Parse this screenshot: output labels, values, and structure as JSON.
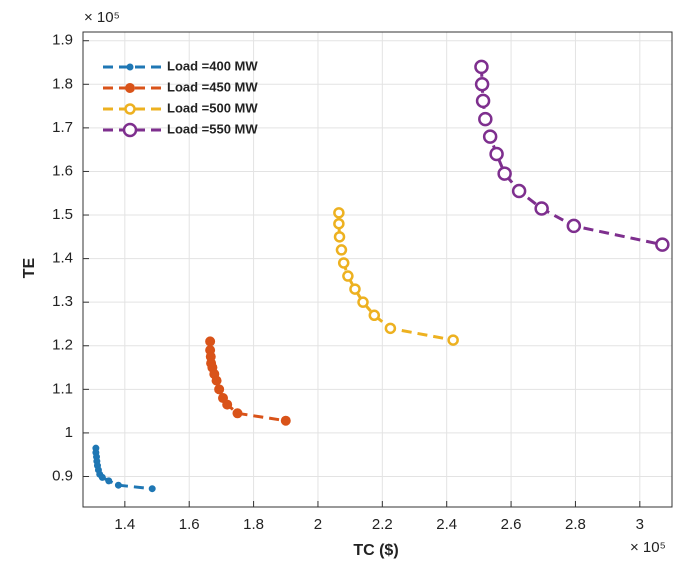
{
  "chart_data": {
    "type": "line",
    "x_label": "TC ($)",
    "y_label": "TE",
    "x_multiplier": "× 10⁵",
    "y_multiplier": "× 10⁵",
    "xlim": [
      1.27,
      3.1
    ],
    "ylim": [
      0.83,
      1.92
    ],
    "xticks": [
      1.4,
      1.6,
      1.8,
      2,
      2.2,
      2.4,
      2.6,
      2.8,
      3
    ],
    "yticks": [
      0.9,
      1,
      1.1,
      1.2,
      1.3,
      1.4,
      1.5,
      1.6,
      1.7,
      1.8,
      1.9
    ],
    "grid": true,
    "legend": "upper-left",
    "series": [
      {
        "name": "Load =400 MW",
        "color": "#1f77b4",
        "marker_size": 3,
        "marker_fill": true,
        "x": [
          1.31,
          1.31,
          1.312,
          1.313,
          1.315,
          1.318,
          1.322,
          1.33,
          1.35,
          1.38,
          1.485
        ],
        "values": [
          0.965,
          0.955,
          0.945,
          0.935,
          0.925,
          0.915,
          0.905,
          0.898,
          0.89,
          0.88,
          0.872
        ]
      },
      {
        "name": "Load =450 MW",
        "color": "#d95319",
        "marker_size": 4.5,
        "marker_fill": true,
        "x": [
          1.665,
          1.665,
          1.667,
          1.668,
          1.672,
          1.678,
          1.685,
          1.693,
          1.705,
          1.718,
          1.75,
          1.9
        ],
        "values": [
          1.21,
          1.19,
          1.175,
          1.16,
          1.15,
          1.135,
          1.12,
          1.1,
          1.08,
          1.065,
          1.045,
          1.028
        ]
      },
      {
        "name": "Load =500 MW",
        "color": "#edb120",
        "marker_size": 4.5,
        "marker_fill": false,
        "x": [
          2.065,
          2.065,
          2.067,
          2.073,
          2.08,
          2.093,
          2.115,
          2.14,
          2.175,
          2.225,
          2.42
        ],
        "values": [
          1.505,
          1.48,
          1.45,
          1.42,
          1.39,
          1.36,
          1.33,
          1.3,
          1.27,
          1.24,
          1.213
        ]
      },
      {
        "name": "Load =550 MW",
        "color": "#7e2f8e",
        "marker_size": 6,
        "marker_fill": false,
        "x": [
          2.508,
          2.51,
          2.513,
          2.52,
          2.535,
          2.555,
          2.58,
          2.625,
          2.695,
          2.795,
          3.07
        ],
        "values": [
          1.84,
          1.8,
          1.762,
          1.72,
          1.68,
          1.64,
          1.595,
          1.555,
          1.515,
          1.475,
          1.432
        ]
      }
    ]
  }
}
